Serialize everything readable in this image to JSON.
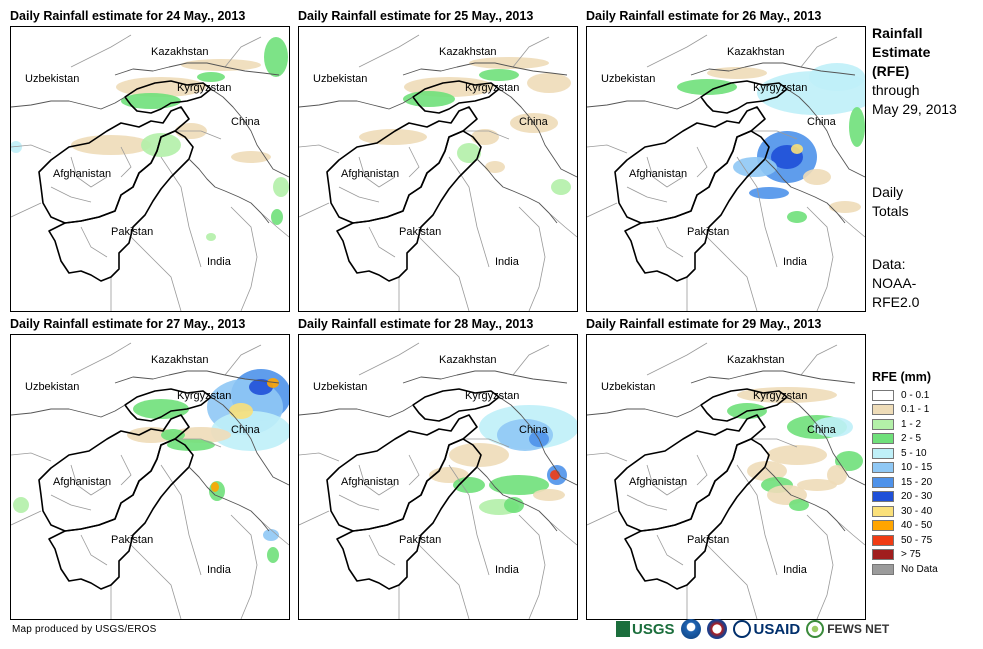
{
  "panels": [
    {
      "title": "Daily Rainfall estimate for 24 May., 2013",
      "rain": "rain-24"
    },
    {
      "title": "Daily Rainfall estimate for 25 May., 2013",
      "rain": "rain-25"
    },
    {
      "title": "Daily Rainfall estimate for 26 May., 2013",
      "rain": "rain-26"
    },
    {
      "title": "Daily Rainfall estimate for 27 May., 2013",
      "rain": "rain-27"
    },
    {
      "title": "Daily Rainfall estimate for 28 May., 2013",
      "rain": "rain-28"
    },
    {
      "title": "Daily Rainfall estimate for 29 May., 2013",
      "rain": "rain-29"
    }
  ],
  "map_labels": {
    "kazakhstan": "Kazakhstan",
    "uzbekistan": "Uzbekistan",
    "kyrgyzstan": "Kyrgyzstan",
    "china": "China",
    "afghanistan": "Afghanistan",
    "pakistan": "Pakistan",
    "india": "India"
  },
  "side": {
    "title_line1": "Rainfall",
    "title_line2": "Estimate",
    "title_line3": "(RFE)",
    "through_line1": "through",
    "through_line2": "May 29, 2013",
    "totals_line1": "Daily",
    "totals_line2": "Totals",
    "data_line1": "Data:",
    "data_line2": "NOAA-",
    "data_line3": "RFE2.0"
  },
  "legend": {
    "title": "RFE (mm)",
    "items": [
      {
        "label": "0 - 0.1",
        "color": "#ffffff"
      },
      {
        "label": "0.1 - 1",
        "color": "#eedcb8"
      },
      {
        "label": "1 - 2",
        "color": "#b3f0a8"
      },
      {
        "label": "2 - 5",
        "color": "#6fe07a"
      },
      {
        "label": "5 - 10",
        "color": "#bff0f8"
      },
      {
        "label": "10 - 15",
        "color": "#8fc8f5"
      },
      {
        "label": "15 - 20",
        "color": "#4e92ea"
      },
      {
        "label": "20 - 30",
        "color": "#1f50d8"
      },
      {
        "label": "30 - 40",
        "color": "#fae07a"
      },
      {
        "label": "40 - 50",
        "color": "#ffa500"
      },
      {
        "label": "50 - 75",
        "color": "#f03c14"
      },
      {
        "label": "> 75",
        "color": "#a01e1e"
      },
      {
        "label": "No Data",
        "color": "#9b9b9b"
      }
    ]
  },
  "footer": {
    "credit": "Map produced by USGS/EROS",
    "logo_usgs": "USGS",
    "logo_usaid": "USAID",
    "logo_fews": "FEWS NET"
  }
}
